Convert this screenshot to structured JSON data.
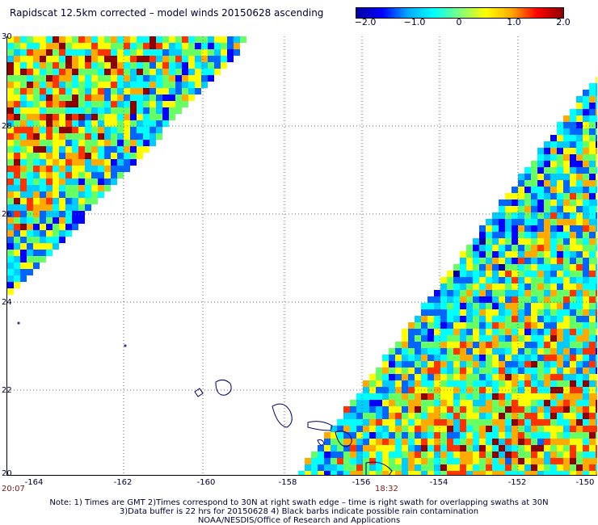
{
  "title": "Rapidscat 12.5km corrected – model winds 20150628 ascending",
  "colorbar": {
    "ticks": [
      "−2.0",
      "−1.0",
      "0",
      "1.0",
      "2.0"
    ],
    "colors": [
      "#0000a0",
      "#0000ff",
      "#00aaff",
      "#00ffff",
      "#7fff7f",
      "#ffff00",
      "#ffaa00",
      "#ff0000",
      "#8b0000"
    ]
  },
  "axes": {
    "lat_labels": [
      "30",
      "28",
      "26",
      "24",
      "22",
      "20"
    ],
    "lon_labels": [
      "-164",
      "-162",
      "-160",
      "-158",
      "-156",
      "-154",
      "-152",
      "-150"
    ],
    "lat_range": [
      20,
      30
    ],
    "lon_range": [
      -165,
      -150
    ]
  },
  "times": {
    "left": "20:07",
    "mid": "18:32"
  },
  "notes": [
    "Note: 1) Times are GMT 2)Times correspond to 30N at right swath edge – time is right swath for overlapping swaths at 30N",
    "3)Data buffer is 22 hrs for 20150628 4) Black barbs indicate possible rain contamination",
    "NOAA/NESDIS/Office of Research and Applications"
  ]
}
